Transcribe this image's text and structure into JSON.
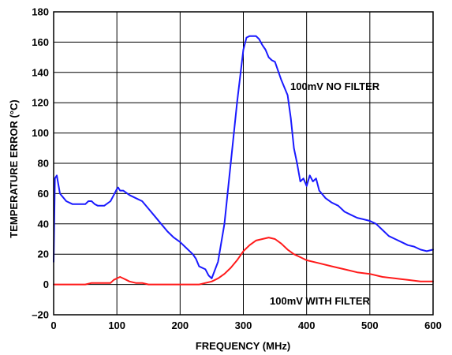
{
  "chart_data": {
    "type": "line",
    "title": "",
    "xlabel": "FREQUENCY (MHz)",
    "ylabel": "TEMPERATURE ERROR (°C)",
    "xlim": [
      0,
      600
    ],
    "ylim": [
      -20,
      180
    ],
    "xticks": [
      0,
      100,
      200,
      300,
      400,
      500,
      600
    ],
    "yticks": [
      -20,
      0,
      20,
      40,
      60,
      80,
      100,
      120,
      140,
      160,
      180
    ],
    "ytick_labels": [
      "–20",
      "0",
      "20",
      "40",
      "60",
      "80",
      "100",
      "120",
      "140",
      "160",
      "180"
    ],
    "grid": true,
    "annotations": [
      "100mV NO FILTER",
      "100mV WITH FILTER"
    ],
    "series": [
      {
        "name": "100mV NO FILTER",
        "color": "#1a1aff",
        "x": [
          0,
          2,
          5,
          10,
          20,
          30,
          40,
          50,
          55,
          60,
          65,
          70,
          80,
          90,
          95,
          100,
          102,
          105,
          110,
          120,
          130,
          140,
          150,
          160,
          170,
          180,
          190,
          200,
          210,
          220,
          225,
          230,
          240,
          245,
          250,
          260,
          270,
          280,
          290,
          300,
          305,
          310,
          320,
          325,
          330,
          335,
          340,
          345,
          350,
          360,
          370,
          375,
          380,
          385,
          390,
          395,
          400,
          405,
          410,
          415,
          420,
          430,
          440,
          450,
          460,
          470,
          480,
          490,
          500,
          510,
          520,
          530,
          540,
          550,
          560,
          570,
          580,
          590,
          600
        ],
        "y": [
          15,
          70,
          72,
          60,
          55,
          53,
          53,
          53,
          55,
          55,
          53,
          52,
          52,
          55,
          59,
          63,
          64,
          62,
          62,
          59,
          57,
          55,
          50,
          45,
          40,
          35,
          31,
          28,
          24,
          20,
          17,
          12,
          10,
          6,
          4,
          15,
          40,
          80,
          120,
          155,
          163,
          164,
          164,
          162,
          158,
          155,
          150,
          148,
          147,
          135,
          125,
          110,
          90,
          80,
          68,
          70,
          65,
          72,
          68,
          70,
          62,
          57,
          54,
          52,
          48,
          46,
          44,
          43,
          42,
          40,
          36,
          32,
          30,
          28,
          26,
          25,
          23,
          22,
          23
        ]
      },
      {
        "name": "100mV WITH FILTER",
        "color": "#ff1a1a",
        "x": [
          0,
          10,
          20,
          30,
          40,
          50,
          60,
          70,
          80,
          90,
          95,
          100,
          105,
          110,
          115,
          120,
          130,
          140,
          150,
          160,
          170,
          180,
          190,
          200,
          210,
          220,
          230,
          240,
          250,
          260,
          270,
          280,
          290,
          300,
          310,
          320,
          330,
          340,
          350,
          360,
          370,
          380,
          390,
          400,
          420,
          440,
          460,
          480,
          500,
          520,
          540,
          560,
          580,
          600
        ],
        "y": [
          0,
          0,
          0,
          0,
          0,
          0,
          1,
          1,
          1,
          1,
          3,
          4,
          5,
          4,
          3,
          2,
          1,
          1,
          0,
          0,
          0,
          0,
          0,
          0,
          0,
          0,
          0,
          1,
          2,
          4,
          7,
          11,
          16,
          22,
          26,
          29,
          30,
          31,
          30,
          27,
          23,
          20,
          18,
          16,
          14,
          12,
          10,
          8,
          7,
          5,
          4,
          3,
          2,
          2
        ]
      }
    ]
  }
}
